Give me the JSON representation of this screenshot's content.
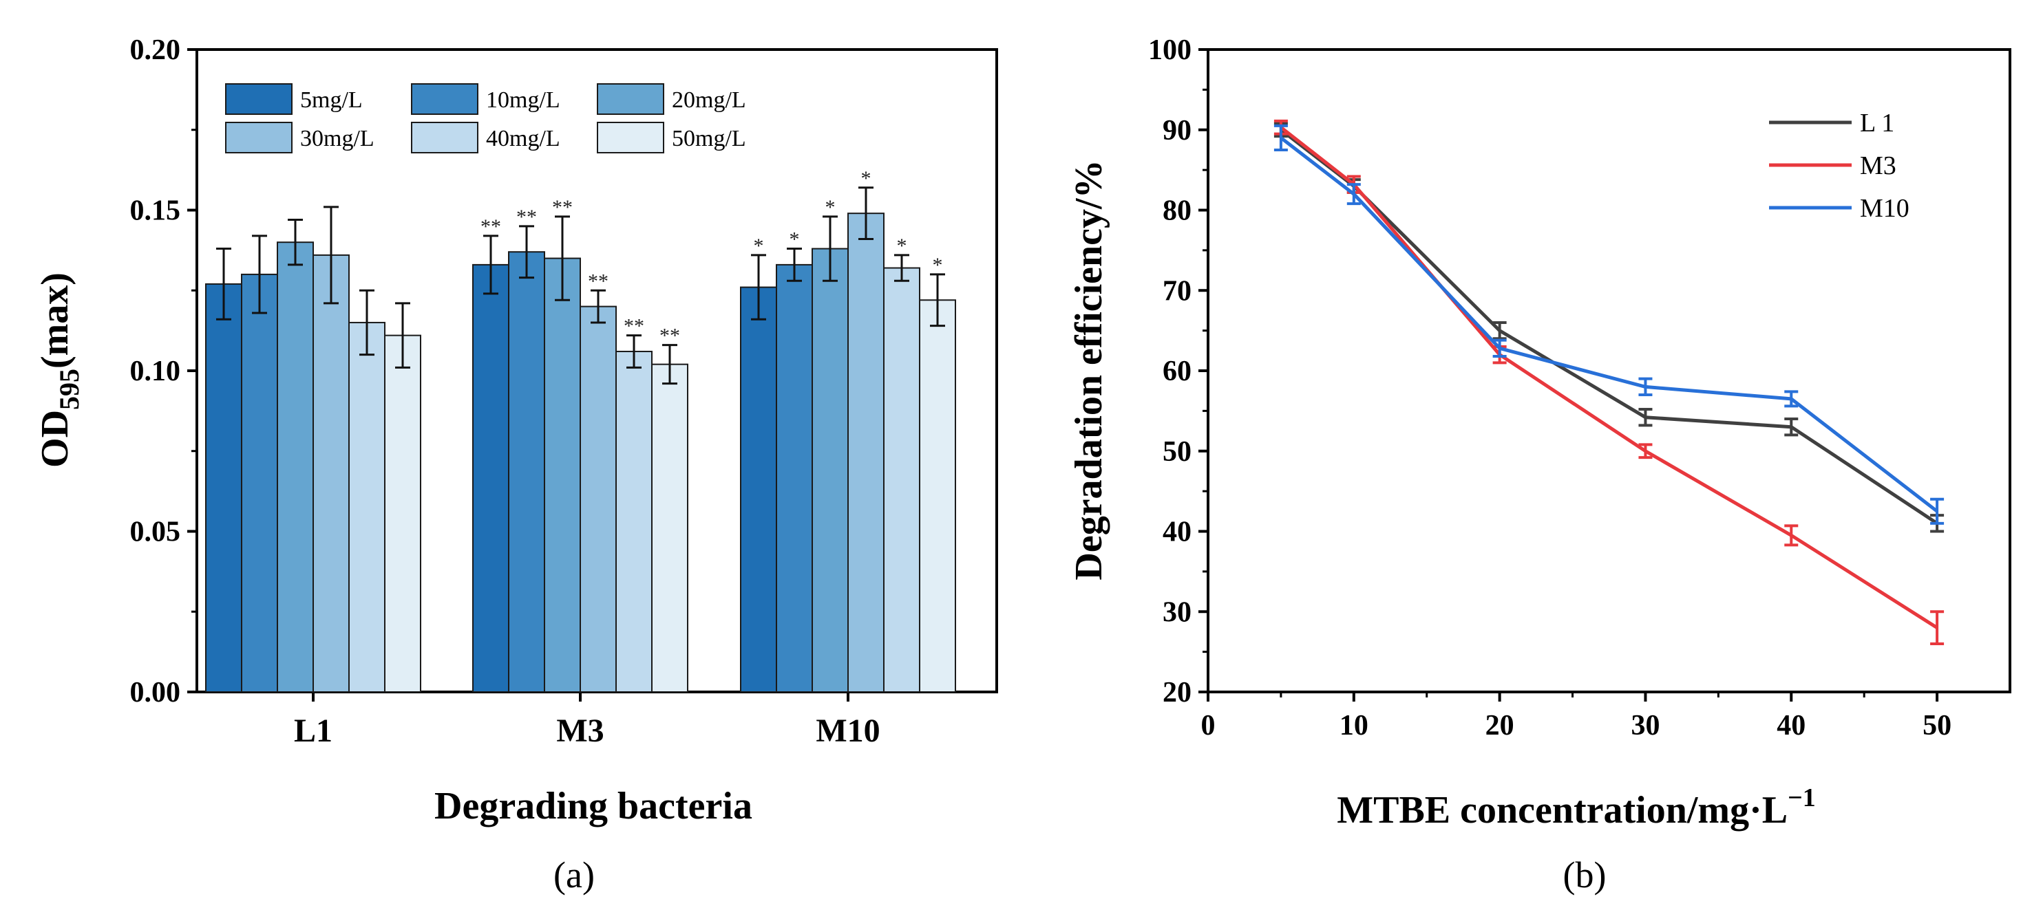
{
  "chart_data": [
    {
      "type": "bar",
      "panel_label": "(a)",
      "xlabel": "Degrading bacteria",
      "ylabel": {
        "main": "OD",
        "sub": "595",
        "rest": "(max)"
      },
      "ylim": [
        0,
        0.2
      ],
      "yticks": [
        "0.00",
        "0.05",
        "0.10",
        "0.15",
        "0.20"
      ],
      "categories": [
        "L1",
        "M3",
        "M10"
      ],
      "legend_position": "top-left",
      "series": [
        {
          "name": "5mg/L",
          "color": "#1f6fb4",
          "values": [
            0.127,
            0.133,
            0.126
          ],
          "errors": [
            0.011,
            0.009,
            0.01
          ],
          "marks": [
            "",
            "**",
            "*"
          ]
        },
        {
          "name": "10mg/L",
          "color": "#3a86c2",
          "values": [
            0.13,
            0.137,
            0.133
          ],
          "errors": [
            0.012,
            0.008,
            0.005
          ],
          "marks": [
            "",
            "**",
            "*"
          ]
        },
        {
          "name": "20mg/L",
          "color": "#65a5d0",
          "values": [
            0.14,
            0.135,
            0.138
          ],
          "errors": [
            0.007,
            0.013,
            0.01
          ],
          "marks": [
            "",
            "**",
            "*"
          ]
        },
        {
          "name": "30mg/L",
          "color": "#93c0e0",
          "values": [
            0.136,
            0.12,
            0.149
          ],
          "errors": [
            0.015,
            0.005,
            0.008
          ],
          "marks": [
            "",
            "**",
            "*"
          ]
        },
        {
          "name": "40mg/L",
          "color": "#bfdaee",
          "values": [
            0.115,
            0.106,
            0.132
          ],
          "errors": [
            0.01,
            0.005,
            0.004
          ],
          "marks": [
            "",
            "**",
            "*"
          ]
        },
        {
          "name": "50mg/L",
          "color": "#e1eef6",
          "values": [
            0.111,
            0.102,
            0.122
          ],
          "errors": [
            0.01,
            0.006,
            0.008
          ],
          "marks": [
            "",
            "**",
            "*"
          ]
        }
      ]
    },
    {
      "type": "line",
      "panel_label": "(b)",
      "xlabel": {
        "main": "MTBE concentration/mg·L",
        "sup": "−1"
      },
      "ylabel": "Degradation efficiency/%",
      "xlim": [
        0,
        55
      ],
      "ylim": [
        20,
        100
      ],
      "xticks": [
        "0",
        "10",
        "20",
        "30",
        "40",
        "50"
      ],
      "yticks": [
        "20",
        "30",
        "40",
        "50",
        "60",
        "70",
        "80",
        "90",
        "100"
      ],
      "x": [
        5,
        10,
        20,
        30,
        40,
        50
      ],
      "legend_position": "top-right",
      "series": [
        {
          "name": "L 1",
          "color": "#404040",
          "values": [
            90.0,
            83.0,
            65.0,
            54.2,
            53.0,
            41.0
          ],
          "errors": [
            0.8,
            0.8,
            1.0,
            1.0,
            1.0,
            1.0
          ]
        },
        {
          "name": "M3",
          "color": "#e8383d",
          "values": [
            90.3,
            83.2,
            62.0,
            50.0,
            39.5,
            28.0
          ],
          "errors": [
            0.8,
            1.0,
            1.0,
            0.8,
            1.2,
            2.0
          ]
        },
        {
          "name": "M10",
          "color": "#2870d8",
          "values": [
            89.0,
            82.0,
            62.8,
            58.0,
            56.5,
            42.5
          ],
          "errors": [
            1.5,
            1.2,
            1.0,
            1.0,
            0.9,
            1.5
          ]
        }
      ]
    }
  ]
}
